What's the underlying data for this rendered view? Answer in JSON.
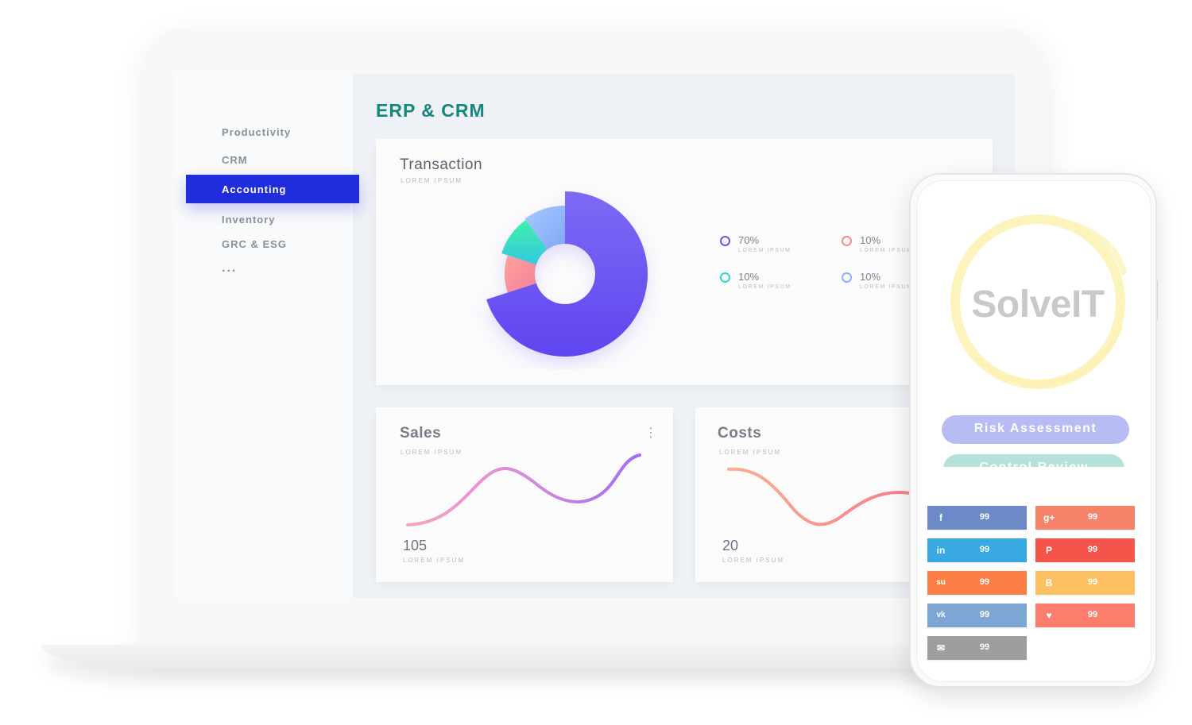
{
  "sidebar": {
    "items": [
      {
        "label": "Productivity"
      },
      {
        "label": "CRM"
      },
      {
        "label": "Accounting",
        "active": true
      },
      {
        "label": "Inventory"
      },
      {
        "label": "GRC & ESG"
      },
      {
        "label": "..."
      }
    ],
    "active_color": "#1f2ddd"
  },
  "main": {
    "title": "ERP & CRM",
    "transaction": {
      "title": "Transaction",
      "subtitle": "LOREM IPSUM",
      "legend": [
        {
          "value": "70%",
          "label": "LOREM IPSUM",
          "color": "#6a55f0"
        },
        {
          "value": "10%",
          "label": "LOREM IPSUM",
          "color": "#f58a96"
        },
        {
          "value": "10%",
          "label": "LOREM IPSUM",
          "color": "#33d6c8"
        },
        {
          "value": "10%",
          "label": "LOREM IPSUM",
          "color": "#8ab1fb"
        }
      ]
    },
    "sales": {
      "title": "Sales",
      "subtitle": "LOREM IPSUM",
      "value": "105",
      "value_label": "LOREM IPSUM"
    },
    "costs": {
      "title": "Costs",
      "subtitle": "LOREM IPSUM",
      "value": "20",
      "value_label": "LOREM IPSUM"
    }
  },
  "chart_data": [
    {
      "type": "pie",
      "categories": [
        "70%",
        "10%",
        "10%",
        "10%"
      ],
      "values": [
        70,
        10,
        10,
        10
      ],
      "colors": [
        "#6a55f0",
        "#f58a96",
        "#33d6c8",
        "#8ab1fb"
      ]
    }
  ],
  "phone": {
    "logo_text": "SolveIT",
    "buttons": [
      {
        "label": "Risk Assessment",
        "color": "#b7bdf3"
      },
      {
        "label": "Control Review",
        "color": "#b6e1da"
      }
    ],
    "social": [
      {
        "icon": "facebook-icon",
        "glyph": "f",
        "count": "99",
        "color": "#6d89c8"
      },
      {
        "icon": "google-plus-icon",
        "glyph": "g+",
        "count": "99",
        "color": "#f6826a"
      },
      {
        "icon": "linkedin-icon",
        "glyph": "in",
        "count": "99",
        "color": "#3aa9e1"
      },
      {
        "icon": "pinterest-icon",
        "glyph": "P",
        "count": "99",
        "color": "#f4544a"
      },
      {
        "icon": "stumbleupon-icon",
        "glyph": "su",
        "count": "99",
        "color": "#fb7f45"
      },
      {
        "icon": "blogger-icon",
        "glyph": "B",
        "count": "99",
        "color": "#fdc163"
      },
      {
        "icon": "vk-icon",
        "glyph": "vk",
        "count": "99",
        "color": "#7ea6d4"
      },
      {
        "icon": "heart-icon",
        "glyph": "♥",
        "count": "99",
        "color": "#fd7d6d"
      },
      {
        "icon": "mail-icon",
        "glyph": "✉",
        "count": "99",
        "color": "#9e9e9e"
      }
    ]
  }
}
